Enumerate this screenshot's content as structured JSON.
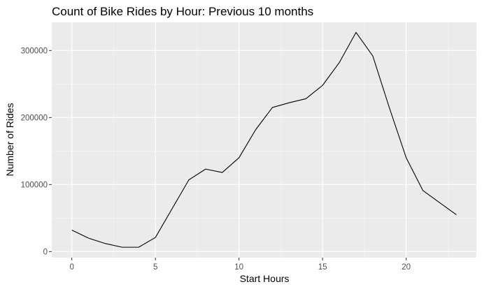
{
  "chart_data": {
    "type": "line",
    "title": "Count of Bike Rides by Hour: Previous 10 months",
    "xlabel": "Start Hours",
    "ylabel": "Number of Rides",
    "x": [
      0,
      1,
      2,
      3,
      4,
      5,
      6,
      7,
      8,
      9,
      10,
      11,
      12,
      13,
      14,
      15,
      16,
      17,
      18,
      19,
      20,
      21,
      22,
      23
    ],
    "series": [
      {
        "values": [
          32000,
          20000,
          12000,
          6500,
          6500,
          21000,
          64000,
          107000,
          123000,
          118000,
          140000,
          182000,
          215000,
          222000,
          228000,
          248000,
          282000,
          327000,
          292000,
          214000,
          140000,
          91000,
          73000,
          55000
        ]
      }
    ],
    "xlim": [
      -1.2,
      24.2
    ],
    "ylim": [
      -9000,
      342000
    ],
    "x_ticks": [
      0,
      5,
      10,
      15,
      20
    ],
    "x_minor_ticks": [
      2.5,
      7.5,
      12.5,
      17.5,
      22.5
    ],
    "y_ticks": [
      0,
      100000,
      200000,
      300000
    ],
    "y_tick_labels": [
      "0",
      "100000",
      "200000",
      "300000"
    ],
    "y_minor_ticks": [
      50000,
      150000,
      250000
    ],
    "grid": true,
    "colors": {
      "panel_background": "#EBEBEB",
      "grid_major": "#FFFFFF",
      "grid_minor": "#F5F5F5",
      "line": "#000000",
      "tick": "#333333"
    }
  }
}
